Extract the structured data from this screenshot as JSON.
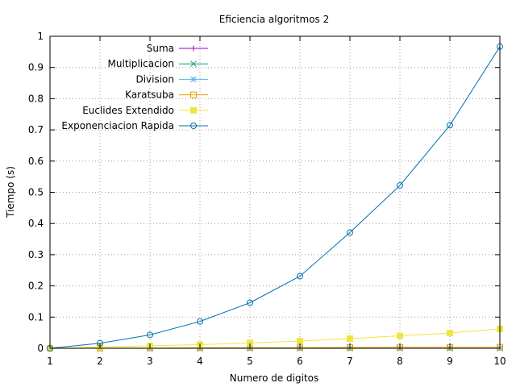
{
  "chart_data": {
    "type": "line",
    "title": "Eficiencia algoritmos 2",
    "xlabel": "Numero de digitos",
    "ylabel": "Tiempo (s)",
    "xlim": [
      1,
      10
    ],
    "ylim": [
      0,
      1
    ],
    "grid": true,
    "legend_position": "top-left",
    "x": [
      1,
      2,
      3,
      4,
      5,
      6,
      7,
      8,
      9,
      10
    ],
    "x_ticks": [
      "1",
      "2",
      "3",
      "4",
      "5",
      "6",
      "7",
      "8",
      "9",
      "10"
    ],
    "y_ticks": [
      "0",
      "0.1",
      "0.2",
      "0.3",
      "0.4",
      "0.5",
      "0.6",
      "0.7",
      "0.8",
      "0.9",
      "1"
    ],
    "series": [
      {
        "name": "Suma",
        "color": "#9400d3",
        "marker": "plus",
        "values": [
          0,
          0,
          0,
          0,
          0,
          0,
          0,
          0,
          0,
          0
        ]
      },
      {
        "name": "Multiplicacion",
        "color": "#009e73",
        "marker": "cross",
        "values": [
          0,
          0,
          0,
          0,
          0,
          0,
          0,
          0,
          0,
          0
        ]
      },
      {
        "name": "Division",
        "color": "#56b4e9",
        "marker": "star",
        "values": [
          0,
          0,
          0,
          0,
          0,
          0,
          0,
          0,
          0,
          0
        ]
      },
      {
        "name": "Karatsuba",
        "color": "#e69f00",
        "marker": "open-square",
        "values": [
          0,
          0.0005,
          0.001,
          0.0015,
          0.002,
          0.002,
          0.0025,
          0.003,
          0.003,
          0.0035
        ]
      },
      {
        "name": "Euclides Extendido",
        "color": "#f0e442",
        "marker": "filled-square",
        "values": [
          0,
          0.004,
          0.008,
          0.012,
          0.017,
          0.023,
          0.031,
          0.04,
          0.049,
          0.062
        ]
      },
      {
        "name": "Exponenciacion Rapida",
        "color": "#0072b2",
        "marker": "open-circle",
        "values": [
          0,
          0.016,
          0.043,
          0.086,
          0.146,
          0.231,
          0.371,
          0.522,
          0.715,
          0.967
        ]
      }
    ]
  }
}
